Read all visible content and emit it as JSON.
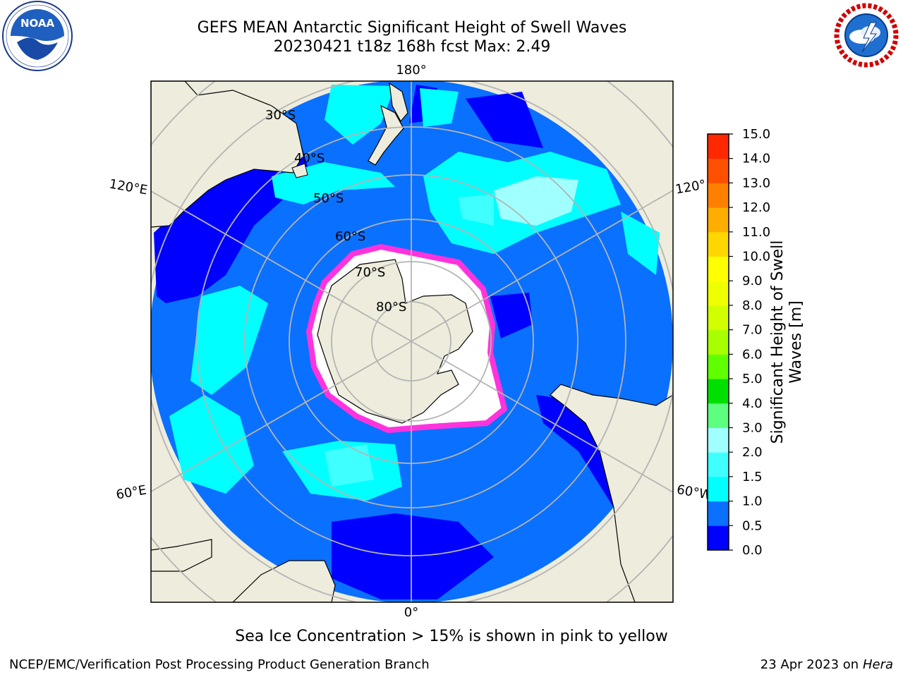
{
  "title": {
    "line1": "GEFS MEAN Antarctic Significant Height of Swell Waves",
    "line2": "20230421 t18z 168h fcst   Max: 2.49"
  },
  "map": {
    "projection": "south-polar-stereographic",
    "longitude_labels": {
      "top": "180°",
      "bottom": "0°",
      "left_upper": "120°E",
      "right_upper": "120°",
      "left_lower": "60°E",
      "right_lower": "60°W"
    },
    "latitude_labels": [
      "30°S",
      "40°S",
      "50°S",
      "60°S",
      "70°S",
      "80°S"
    ],
    "colors": {
      "land": "#eeecdc",
      "ice_edge": "#ff33dd",
      "grid": "#b4b4b4"
    }
  },
  "colorbar": {
    "title_line1": "Significant Height of Swell",
    "title_line2": "Waves [m]",
    "ticks": [
      "0.0",
      "0.5",
      "1.0",
      "1.5",
      "2.0",
      "3.0",
      "4.0",
      "5.0",
      "6.0",
      "7.0",
      "8.0",
      "9.0",
      "10.0",
      "11.0",
      "12.0",
      "13.0",
      "14.0",
      "15.0"
    ],
    "colors": [
      "#0000ff",
      "#0a70ff",
      "#00ffff",
      "#40ffff",
      "#a0ffff",
      "#5cff80",
      "#00e000",
      "#60ff00",
      "#a8ff00",
      "#d2ff00",
      "#f0ff00",
      "#ffff00",
      "#ffd700",
      "#ffae00",
      "#ff8000",
      "#ff5000",
      "#ff2800"
    ]
  },
  "caption": "Sea Ice Concentration > 15% is shown in pink to yellow",
  "footer": {
    "left": "NCEP/EMC/Verification Post Processing Product Generation Branch",
    "date": "23 Apr 2023 on",
    "machine": "Hera"
  }
}
